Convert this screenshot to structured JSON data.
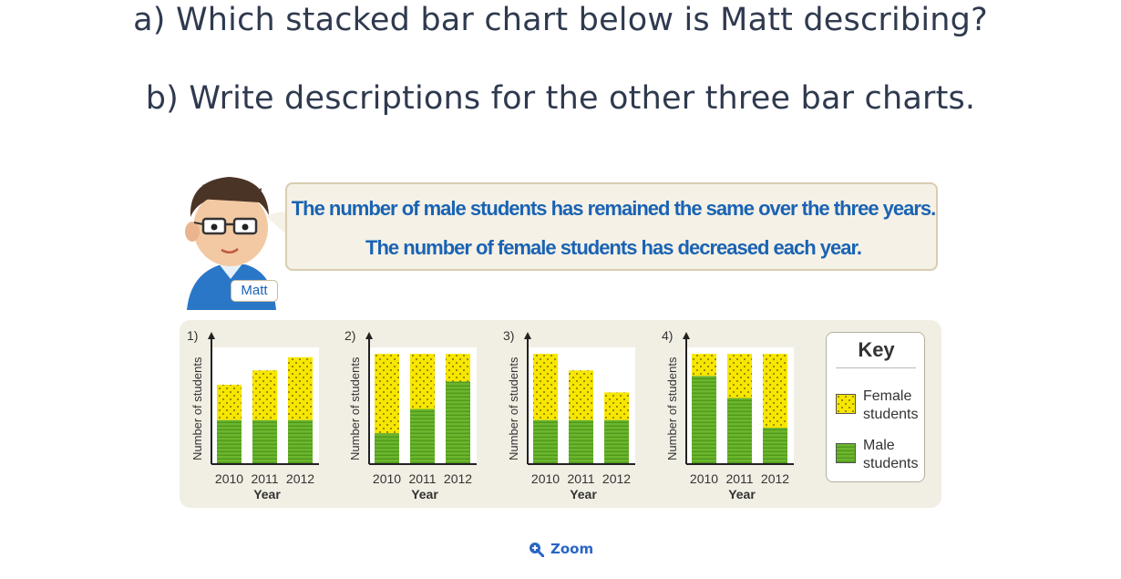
{
  "question_a": "a) Which stacked bar chart below is Matt describing?",
  "question_b": "b) Write descriptions for the other three bar charts.",
  "speech": {
    "line1": "The number of male students has remained the same over the three years.",
    "line2": "The number of female students has decreased each year."
  },
  "character_name": "Matt",
  "key": {
    "title": "Key",
    "female_label": "Female students",
    "male_label": "Male students"
  },
  "colors": {
    "female": "#f7e600",
    "male": "#6cb52d",
    "speech_text": "#1a63b3",
    "zoom": "#2a66c4"
  },
  "zoom": {
    "label": "Zoom",
    "icon": "magnifier-plus-icon"
  },
  "chart_data": [
    {
      "type": "bar",
      "stacked": true,
      "title": "1)",
      "ylabel": "Number of students",
      "xlabel": "Year",
      "categories": [
        "2010",
        "2011",
        "2012"
      ],
      "series": [
        {
          "name": "Male students",
          "values": [
            40,
            40,
            40
          ]
        },
        {
          "name": "Female students",
          "values": [
            32,
            45,
            57
          ]
        }
      ],
      "ylim": [
        0,
        110
      ]
    },
    {
      "type": "bar",
      "stacked": true,
      "title": "2)",
      "ylabel": "Number of students",
      "xlabel": "Year",
      "categories": [
        "2010",
        "2011",
        "2012"
      ],
      "series": [
        {
          "name": "Male students",
          "values": [
            28,
            50,
            75
          ]
        },
        {
          "name": "Female students",
          "values": [
            72,
            50,
            25
          ]
        }
      ],
      "ylim": [
        0,
        110
      ]
    },
    {
      "type": "bar",
      "stacked": true,
      "title": "3)",
      "ylabel": "Number of students",
      "xlabel": "Year",
      "categories": [
        "2010",
        "2011",
        "2012"
      ],
      "series": [
        {
          "name": "Male students",
          "values": [
            40,
            40,
            40
          ]
        },
        {
          "name": "Female students",
          "values": [
            60,
            45,
            25
          ]
        }
      ],
      "ylim": [
        0,
        110
      ]
    },
    {
      "type": "bar",
      "stacked": true,
      "title": "4)",
      "ylabel": "Number of students",
      "xlabel": "Year",
      "categories": [
        "2010",
        "2011",
        "2012"
      ],
      "series": [
        {
          "name": "Male students",
          "values": [
            80,
            60,
            33
          ]
        },
        {
          "name": "Female students",
          "values": [
            20,
            40,
            67
          ]
        }
      ],
      "ylim": [
        0,
        110
      ]
    }
  ]
}
